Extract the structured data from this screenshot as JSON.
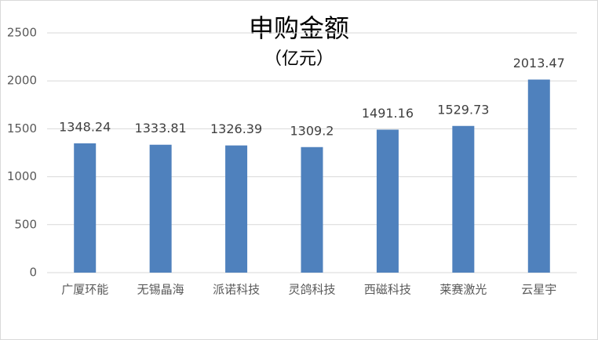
{
  "chart_data": {
    "type": "bar",
    "title": "申购金额",
    "subtitle": "（亿元）",
    "categories": [
      "广厦环能",
      "无锡晶海",
      "派诺科技",
      "灵鸽科技",
      "西磁科技",
      "莱赛激光",
      "云星宇"
    ],
    "values": [
      1348.24,
      1333.81,
      1326.39,
      1309.2,
      1491.16,
      1529.73,
      2013.47
    ],
    "color": "#4f81bd",
    "ylim": [
      0,
      2500
    ],
    "yticks": [
      0,
      500,
      1000,
      1500,
      2000,
      2500
    ],
    "grid": true
  }
}
